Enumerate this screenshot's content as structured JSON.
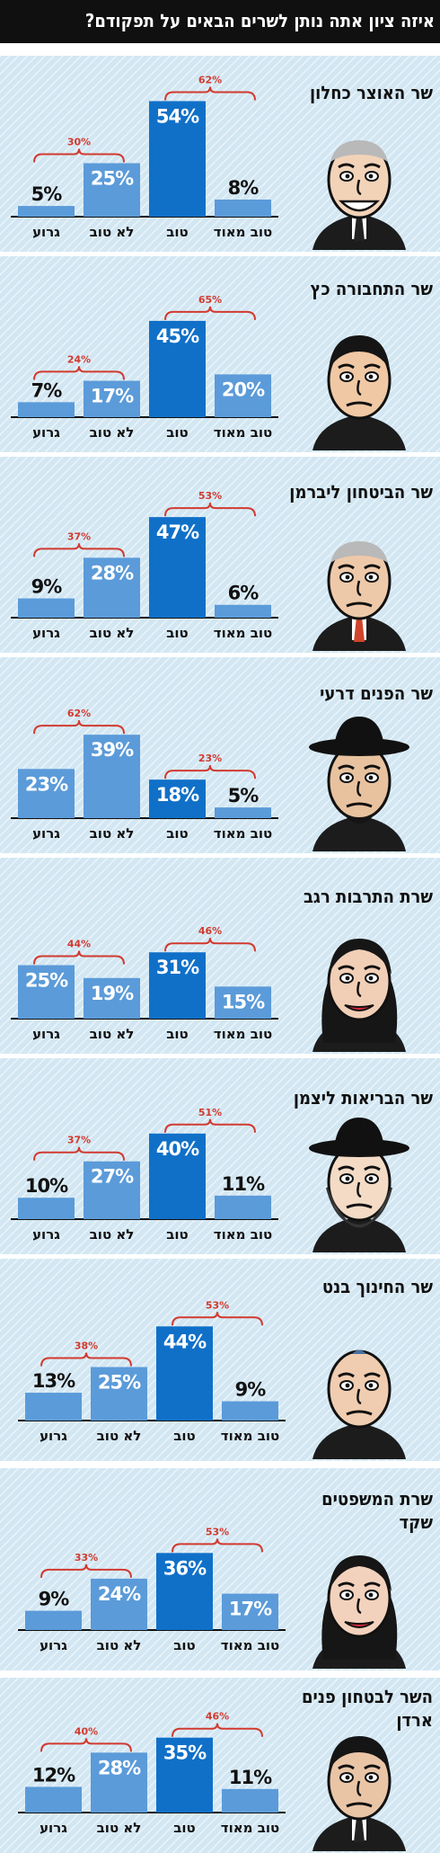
{
  "page": {
    "title": "איזה ציון אתה נותן לשרים הבאים על תפקודם?"
  },
  "colors": {
    "bar_light": "#5b9bd9",
    "bar_dark": "#1070c8",
    "group_bracket": "#d23a2f",
    "panel_bg": "#d3e7f3"
  },
  "chart_data": [
    {
      "type": "bar",
      "title": "שר האוצר כחלון",
      "categories": [
        "גרוע",
        "לא טוב",
        "טוב",
        "טוב מאוד"
      ],
      "values": [
        5,
        25,
        54,
        8
      ],
      "value_labels": [
        "5%",
        "25%",
        "54%",
        "8%"
      ],
      "group_left": "30%",
      "group_right": "62%",
      "ylim": [
        0,
        60
      ]
    },
    {
      "type": "bar",
      "title": "שר התחבורה כץ",
      "categories": [
        "גרוע",
        "לא טוב",
        "טוב",
        "טוב מאוד"
      ],
      "values": [
        7,
        17,
        45,
        20
      ],
      "value_labels": [
        "7%",
        "17%",
        "45%",
        "20%"
      ],
      "group_left": "24%",
      "group_right": "65%",
      "ylim": [
        0,
        60
      ]
    },
    {
      "type": "bar",
      "title": "שר הביטחון ליברמן",
      "categories": [
        "גרוע",
        "לא טוב",
        "טוב",
        "טוב מאוד"
      ],
      "values": [
        9,
        28,
        47,
        6
      ],
      "value_labels": [
        "9%",
        "28%",
        "47%",
        "6%"
      ],
      "group_left": "37%",
      "group_right": "53%",
      "ylim": [
        0,
        60
      ]
    },
    {
      "type": "bar",
      "title": "שר הפנים דרעי",
      "categories": [
        "גרוע",
        "לא טוב",
        "טוב",
        "טוב מאוד"
      ],
      "values": [
        23,
        39,
        18,
        5
      ],
      "value_labels": [
        "23%",
        "39%",
        "18%",
        "5%"
      ],
      "group_left": "62%",
      "group_right": "23%",
      "ylim": [
        0,
        60
      ]
    },
    {
      "type": "bar",
      "title": "שרת התרבות רגב",
      "categories": [
        "גרוע",
        "לא טוב",
        "טוב",
        "טוב מאוד"
      ],
      "values": [
        25,
        19,
        31,
        15
      ],
      "value_labels": [
        "25%",
        "19%",
        "31%",
        "15%"
      ],
      "group_left": "44%",
      "group_right": "46%",
      "ylim": [
        0,
        60
      ]
    },
    {
      "type": "bar",
      "title": "שר הבריאות ליצמן",
      "categories": [
        "גרוע",
        "לא טוב",
        "טוב",
        "טוב מאוד"
      ],
      "values": [
        10,
        27,
        40,
        11
      ],
      "value_labels": [
        "10%",
        "27%",
        "40%",
        "11%"
      ],
      "group_left": "37%",
      "group_right": "51%",
      "ylim": [
        0,
        60
      ]
    },
    {
      "type": "bar",
      "title": "שר החינוך בנט",
      "categories": [
        "גרוע",
        "לא טוב",
        "טוב",
        "טוב מאוד"
      ],
      "values": [
        13,
        25,
        44,
        9
      ],
      "value_labels": [
        "13%",
        "25%",
        "44%",
        "9%"
      ],
      "group_left": "38%",
      "group_right": "53%",
      "ylim": [
        0,
        60
      ]
    },
    {
      "type": "bar",
      "title": "שרת המשפטים שקד",
      "categories": [
        "גרוע",
        "לא טוב",
        "טוב",
        "טוב מאוד"
      ],
      "values": [
        9,
        24,
        36,
        17
      ],
      "value_labels": [
        "9%",
        "24%",
        "36%",
        "17%"
      ],
      "group_left": "33%",
      "group_right": "53%",
      "ylim": [
        0,
        60
      ]
    },
    {
      "type": "bar",
      "title": "השר לבטחון פנים ארדן",
      "categories": [
        "גרוע",
        "לא טוב",
        "טוב",
        "טוב מאוד"
      ],
      "values": [
        12,
        28,
        35,
        11
      ],
      "value_labels": [
        "12%",
        "28%",
        "35%",
        "11%"
      ],
      "group_left": "40%",
      "group_right": "46%",
      "ylim": [
        0,
        60
      ]
    }
  ]
}
